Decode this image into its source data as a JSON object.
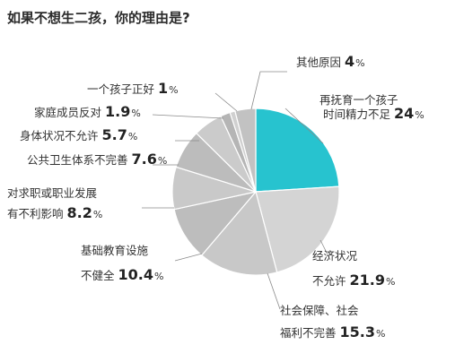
{
  "chart_data": {
    "type": "pie",
    "title": "如果不想生二孩，你的理由是?",
    "slices": [
      {
        "label_lines": [
          "再抚育一个孩子",
          "时间精力不足"
        ],
        "value": 24,
        "value_text": "24",
        "color": "#27c3cf"
      },
      {
        "label_lines": [
          "经济状况",
          "不允许"
        ],
        "value": 21.9,
        "value_text": "21.9",
        "color": "#d4d4d4"
      },
      {
        "label_lines": [
          "社会保障、社会",
          "福利不完善"
        ],
        "value": 15.3,
        "value_text": "15.3",
        "color": "#c8c8c8"
      },
      {
        "label_lines": [
          "基础教育设施",
          "不健全"
        ],
        "value": 10.4,
        "value_text": "10.4",
        "color": "#bdbdbd"
      },
      {
        "label_lines": [
          "对求职或职业发展",
          "有不利影响"
        ],
        "value": 8.2,
        "value_text": "8.2",
        "color": "#c9c9c9"
      },
      {
        "label_lines": [
          "公共卫生体系不完善"
        ],
        "value": 7.6,
        "value_text": "7.6",
        "color": "#bcbcbc"
      },
      {
        "label_lines": [
          "身体状况不允许"
        ],
        "value": 5.7,
        "value_text": "5.7",
        "color": "#cbcbcb"
      },
      {
        "label_lines": [
          "家庭成员反对"
        ],
        "value": 1.9,
        "value_text": "1.9",
        "color": "#b5b5b5"
      },
      {
        "label_lines": [
          "一个孩子正好"
        ],
        "value": 1,
        "value_text": "1",
        "color": "#d0d0d0"
      },
      {
        "label_lines": [
          "其他原因"
        ],
        "value": 4,
        "value_text": "4",
        "color": "#c2c2c2"
      }
    ],
    "percent_sign": "%"
  }
}
